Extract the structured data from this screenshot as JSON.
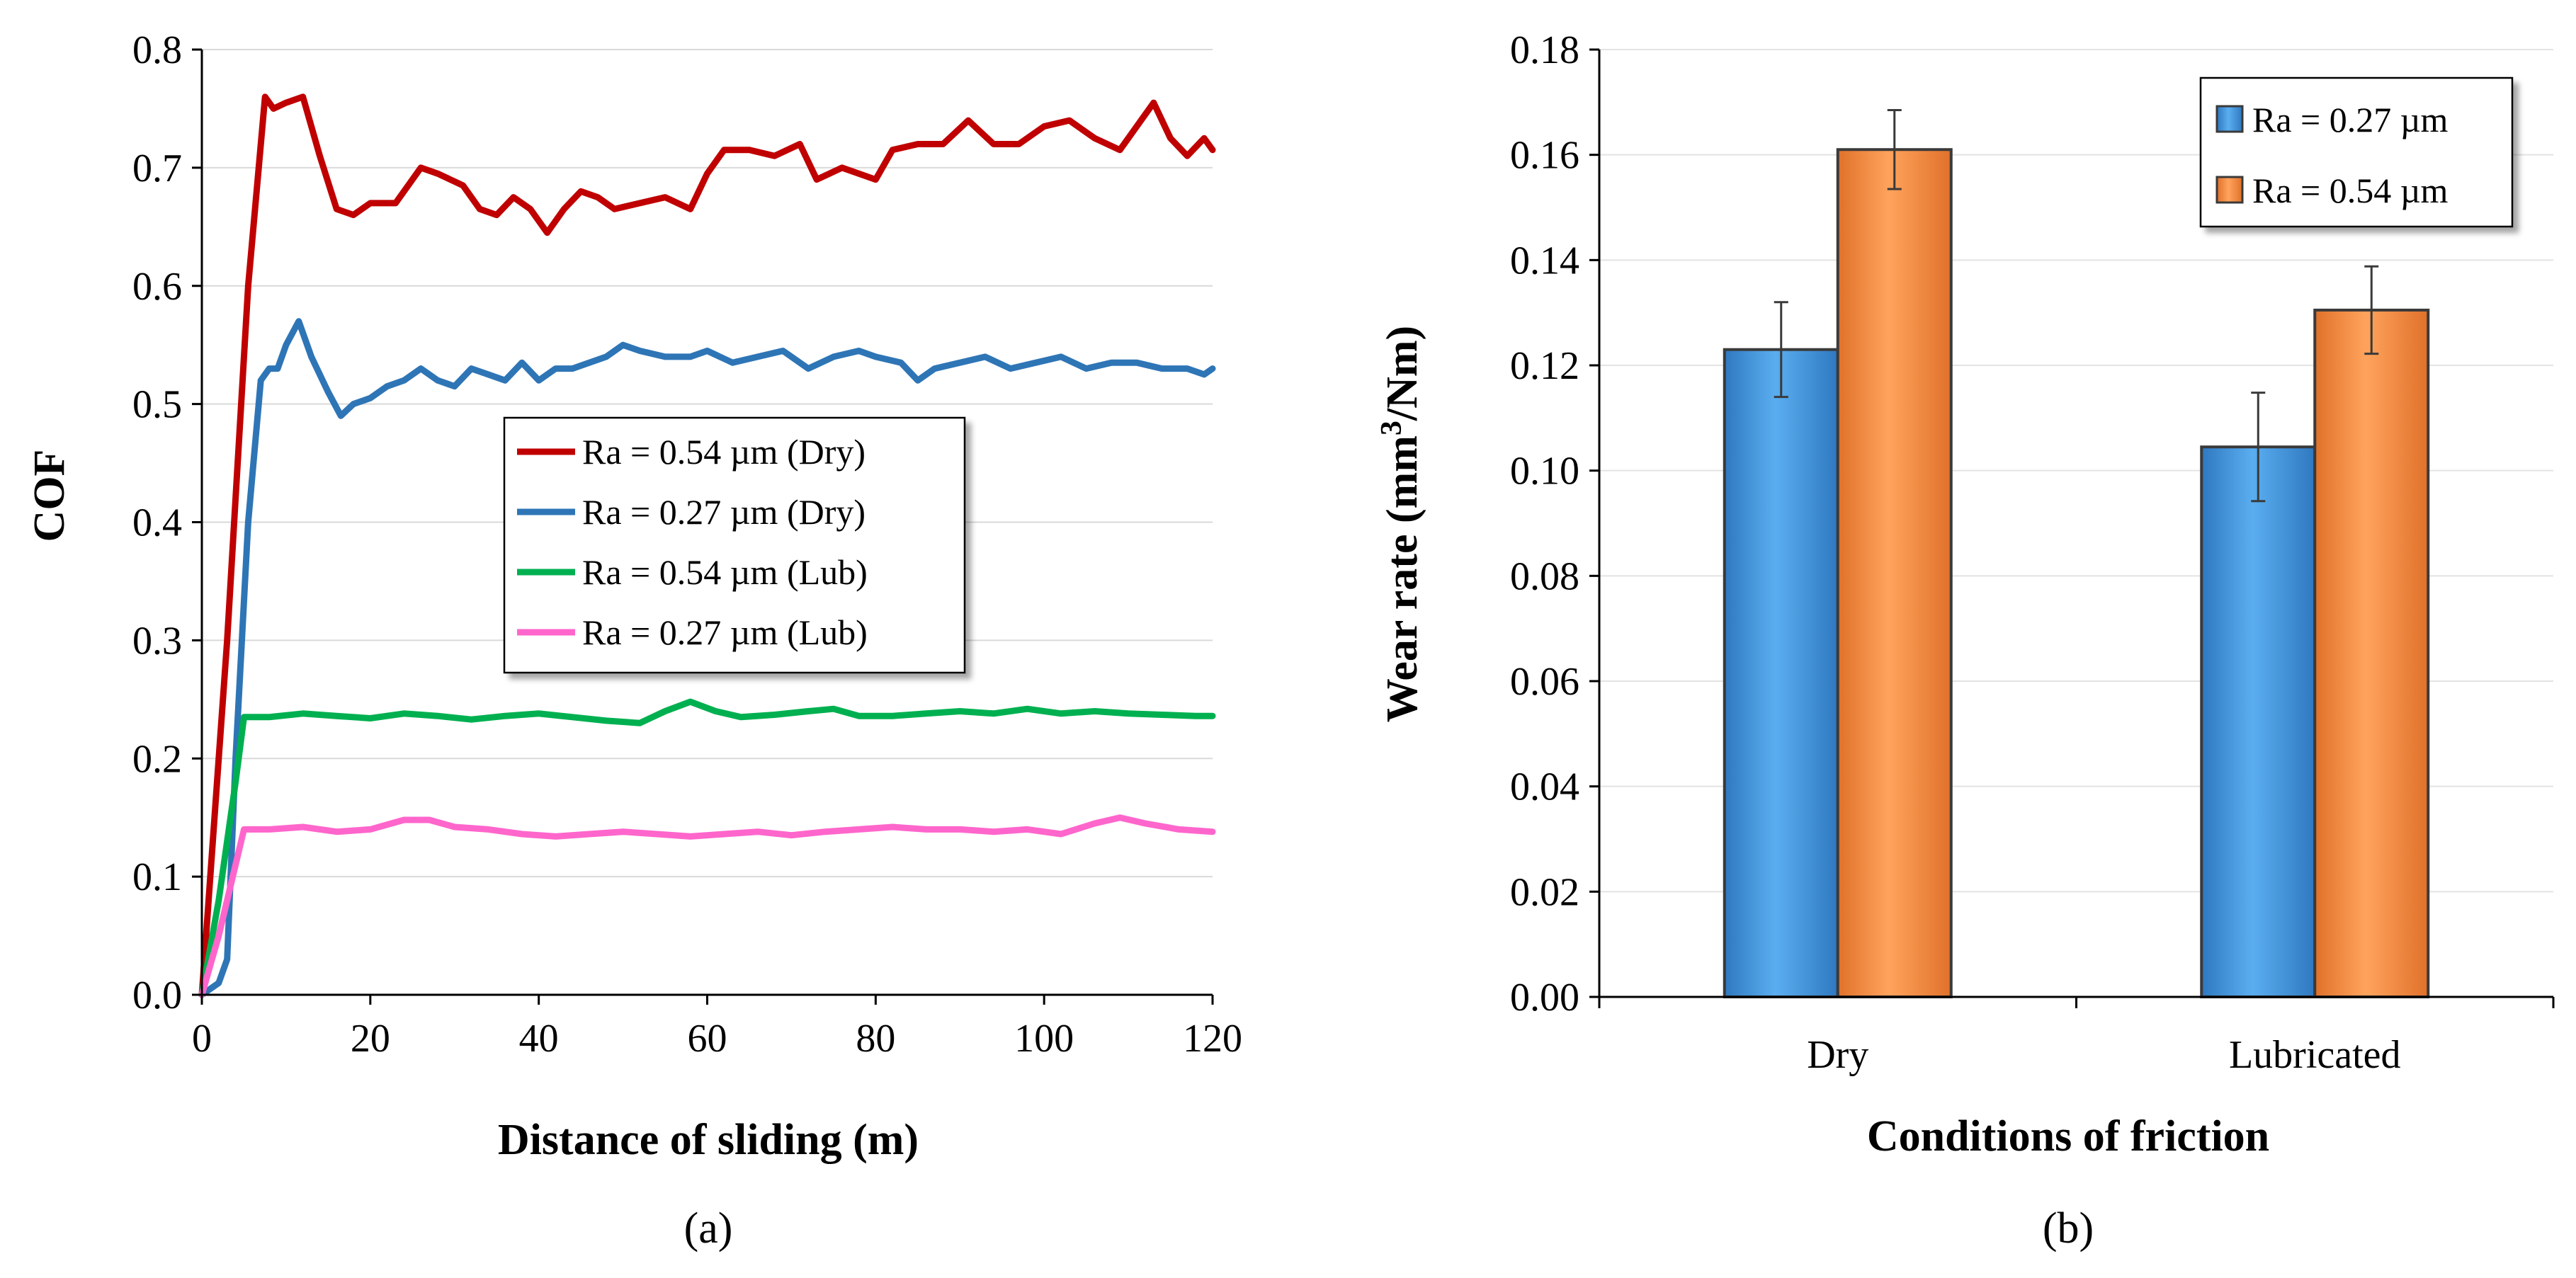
{
  "chart_data": [
    {
      "id": "a",
      "type": "line",
      "panel_label": "(a)",
      "xlabel": "Distance of sliding (m)",
      "ylabel": "COF",
      "xlim": [
        0,
        120
      ],
      "ylim": [
        0,
        0.8
      ],
      "xticks": [
        0,
        20,
        40,
        60,
        80,
        100,
        120
      ],
      "yticks": [
        0.0,
        0.1,
        0.2,
        0.3,
        0.4,
        0.5,
        0.6,
        0.7,
        0.8
      ],
      "ytick_labels": [
        "0.0",
        "0.1",
        "0.2",
        "0.3",
        "0.4",
        "0.5",
        "0.6",
        "0.7",
        "0.8"
      ],
      "grid": "horizontal",
      "legend_position": "center-right",
      "series": [
        {
          "name": "Ra = 0.54 µm (Dry)",
          "color": "#C00000",
          "points": [
            [
              0,
              0
            ],
            [
              3,
              0.3
            ],
            [
              5.5,
              0.6
            ],
            [
              7.5,
              0.76
            ],
            [
              8.5,
              0.75
            ],
            [
              10,
              0.755
            ],
            [
              12,
              0.76
            ],
            [
              14,
              0.71
            ],
            [
              16,
              0.665
            ],
            [
              18,
              0.66
            ],
            [
              20,
              0.67
            ],
            [
              23,
              0.67
            ],
            [
              26,
              0.7
            ],
            [
              28,
              0.695
            ],
            [
              31,
              0.685
            ],
            [
              33,
              0.665
            ],
            [
              35,
              0.66
            ],
            [
              37,
              0.675
            ],
            [
              39,
              0.665
            ],
            [
              41,
              0.645
            ],
            [
              43,
              0.665
            ],
            [
              45,
              0.68
            ],
            [
              47,
              0.675
            ],
            [
              49,
              0.665
            ],
            [
              52,
              0.67
            ],
            [
              55,
              0.675
            ],
            [
              58,
              0.665
            ],
            [
              60,
              0.695
            ],
            [
              62,
              0.715
            ],
            [
              65,
              0.715
            ],
            [
              68,
              0.71
            ],
            [
              71,
              0.72
            ],
            [
              73,
              0.69
            ],
            [
              76,
              0.7
            ],
            [
              80,
              0.69
            ],
            [
              82,
              0.715
            ],
            [
              85,
              0.72
            ],
            [
              88,
              0.72
            ],
            [
              91,
              0.74
            ],
            [
              94,
              0.72
            ],
            [
              97,
              0.72
            ],
            [
              100,
              0.735
            ],
            [
              103,
              0.74
            ],
            [
              106,
              0.725
            ],
            [
              109,
              0.715
            ],
            [
              112,
              0.745
            ],
            [
              113,
              0.755
            ],
            [
              115,
              0.725
            ],
            [
              117,
              0.71
            ],
            [
              119,
              0.725
            ],
            [
              120,
              0.715
            ]
          ]
        },
        {
          "name": "Ra = 0.27 µm (Dry)",
          "color": "#2E75B6",
          "points": [
            [
              0,
              0
            ],
            [
              2,
              0.01
            ],
            [
              3,
              0.03
            ],
            [
              4,
              0.2
            ],
            [
              5.5,
              0.4
            ],
            [
              7,
              0.52
            ],
            [
              8,
              0.53
            ],
            [
              9,
              0.53
            ],
            [
              10,
              0.55
            ],
            [
              11.5,
              0.57
            ],
            [
              13,
              0.54
            ],
            [
              15,
              0.51
            ],
            [
              16.5,
              0.49
            ],
            [
              18,
              0.5
            ],
            [
              20,
              0.505
            ],
            [
              22,
              0.515
            ],
            [
              24,
              0.52
            ],
            [
              26,
              0.53
            ],
            [
              28,
              0.52
            ],
            [
              30,
              0.515
            ],
            [
              32,
              0.53
            ],
            [
              34,
              0.525
            ],
            [
              36,
              0.52
            ],
            [
              38,
              0.535
            ],
            [
              40,
              0.52
            ],
            [
              42,
              0.53
            ],
            [
              44,
              0.53
            ],
            [
              46,
              0.535
            ],
            [
              48,
              0.54
            ],
            [
              50,
              0.55
            ],
            [
              52,
              0.545
            ],
            [
              55,
              0.54
            ],
            [
              58,
              0.54
            ],
            [
              60,
              0.545
            ],
            [
              63,
              0.535
            ],
            [
              66,
              0.54
            ],
            [
              69,
              0.545
            ],
            [
              72,
              0.53
            ],
            [
              75,
              0.54
            ],
            [
              78,
              0.545
            ],
            [
              80,
              0.54
            ],
            [
              83,
              0.535
            ],
            [
              85,
              0.52
            ],
            [
              87,
              0.53
            ],
            [
              90,
              0.535
            ],
            [
              93,
              0.54
            ],
            [
              96,
              0.53
            ],
            [
              99,
              0.535
            ],
            [
              102,
              0.54
            ],
            [
              105,
              0.53
            ],
            [
              108,
              0.535
            ],
            [
              111,
              0.535
            ],
            [
              114,
              0.53
            ],
            [
              117,
              0.53
            ],
            [
              119,
              0.525
            ],
            [
              120,
              0.53
            ]
          ]
        },
        {
          "name": "Ra = 0.54 µm (Lub)",
          "color": "#00B050",
          "points": [
            [
              0,
              0
            ],
            [
              2,
              0.08
            ],
            [
              4,
              0.18
            ],
            [
              5,
              0.235
            ],
            [
              8,
              0.235
            ],
            [
              12,
              0.238
            ],
            [
              16,
              0.236
            ],
            [
              20,
              0.234
            ],
            [
              24,
              0.238
            ],
            [
              28,
              0.236
            ],
            [
              32,
              0.233
            ],
            [
              36,
              0.236
            ],
            [
              40,
              0.238
            ],
            [
              44,
              0.235
            ],
            [
              48,
              0.232
            ],
            [
              52,
              0.23
            ],
            [
              55,
              0.24
            ],
            [
              58,
              0.248
            ],
            [
              61,
              0.24
            ],
            [
              64,
              0.235
            ],
            [
              68,
              0.237
            ],
            [
              72,
              0.24
            ],
            [
              75,
              0.242
            ],
            [
              78,
              0.236
            ],
            [
              82,
              0.236
            ],
            [
              86,
              0.238
            ],
            [
              90,
              0.24
            ],
            [
              94,
              0.238
            ],
            [
              98,
              0.242
            ],
            [
              102,
              0.238
            ],
            [
              106,
              0.24
            ],
            [
              110,
              0.238
            ],
            [
              114,
              0.237
            ],
            [
              118,
              0.236
            ],
            [
              120,
              0.236
            ]
          ]
        },
        {
          "name": "Ra = 0.27 µm (Lub)",
          "color": "#FF66CC",
          "points": [
            [
              0,
              0
            ],
            [
              2,
              0.05
            ],
            [
              4,
              0.11
            ],
            [
              5,
              0.14
            ],
            [
              8,
              0.14
            ],
            [
              12,
              0.142
            ],
            [
              16,
              0.138
            ],
            [
              20,
              0.14
            ],
            [
              24,
              0.148
            ],
            [
              27,
              0.148
            ],
            [
              30,
              0.142
            ],
            [
              34,
              0.14
            ],
            [
              38,
              0.136
            ],
            [
              42,
              0.134
            ],
            [
              46,
              0.136
            ],
            [
              50,
              0.138
            ],
            [
              54,
              0.136
            ],
            [
              58,
              0.134
            ],
            [
              62,
              0.136
            ],
            [
              66,
              0.138
            ],
            [
              70,
              0.135
            ],
            [
              74,
              0.138
            ],
            [
              78,
              0.14
            ],
            [
              82,
              0.142
            ],
            [
              86,
              0.14
            ],
            [
              90,
              0.14
            ],
            [
              94,
              0.138
            ],
            [
              98,
              0.14
            ],
            [
              102,
              0.136
            ],
            [
              106,
              0.145
            ],
            [
              109,
              0.15
            ],
            [
              112,
              0.145
            ],
            [
              116,
              0.14
            ],
            [
              120,
              0.138
            ]
          ]
        }
      ]
    },
    {
      "id": "b",
      "type": "bar",
      "panel_label": "(b)",
      "xlabel": "Conditions of friction",
      "ylabel_prefix": "Wear rate (mm",
      "ylabel_sup": "3",
      "ylabel_suffix": "/Nm)",
      "categories": [
        "Dry",
        "Lubricated"
      ],
      "ylim": [
        0,
        0.18
      ],
      "yticks": [
        0.0,
        0.02,
        0.04,
        0.06,
        0.08,
        0.1,
        0.12,
        0.14,
        0.16,
        0.18
      ],
      "ytick_labels": [
        "0.00",
        "0.02",
        "0.04",
        "0.06",
        "0.08",
        "0.10",
        "0.12",
        "0.14",
        "0.16",
        "0.18"
      ],
      "grid": "horizontal",
      "legend_position": "top-right",
      "series": [
        {
          "name": "Ra = 0.27 µm",
          "color": "#4A9BE0",
          "values": [
            0.123,
            0.1045
          ],
          "errors": [
            0.009,
            0.0103
          ]
        },
        {
          "name": "Ra = 0.54 µm",
          "color": "#F48A3C",
          "values": [
            0.161,
            0.1305
          ],
          "errors": [
            0.0075,
            0.0083
          ]
        }
      ]
    }
  ]
}
